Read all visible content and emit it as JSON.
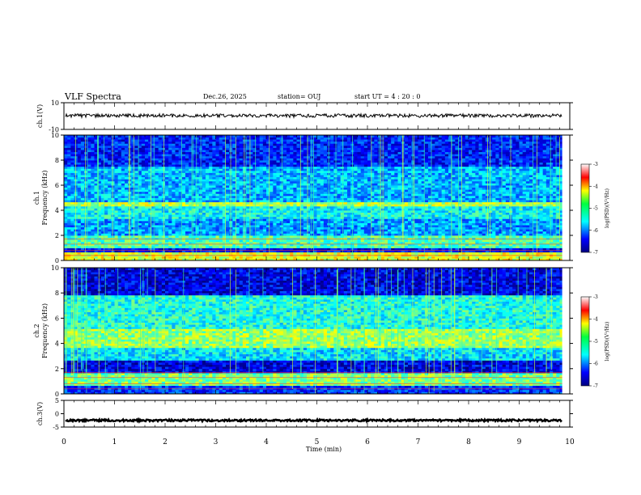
{
  "header": {
    "title": "VLF Spectra",
    "date": "Dec.26, 2025",
    "station": "station= OUJ",
    "start": "start  UT =   4 : 20 : 0"
  },
  "chart_data": [
    {
      "type": "line",
      "name": "ch1-waveform",
      "ylabel": "ch.1(V)",
      "yticks": [
        "10",
        "-10"
      ],
      "ylim": [
        -10,
        10
      ],
      "xlim": [
        0,
        10
      ],
      "description_level": 0.3
    },
    {
      "type": "heatmap",
      "name": "ch1-spectrogram",
      "ylabel": "Frequency (kHz)",
      "ylabel_top": "ch.1",
      "xlim": [
        0,
        10
      ],
      "ylim": [
        0,
        10
      ],
      "yticks": [
        "0",
        "2",
        "4",
        "6",
        "8",
        "10"
      ],
      "colorbar": {
        "label": "log(PSD)(V²/Hz)",
        "ticks": [
          "-3",
          "-4",
          "-5",
          "-6",
          "-7"
        ],
        "range": [
          -7,
          -3
        ]
      },
      "bands": [
        {
          "from": 0.0,
          "to": 0.6,
          "level": -4.6
        },
        {
          "from": 0.6,
          "to": 1.0,
          "level": -6.5
        },
        {
          "from": 1.0,
          "to": 2.0,
          "level": -5.2
        },
        {
          "from": 2.0,
          "to": 3.3,
          "level": -5.9
        },
        {
          "from": 3.3,
          "to": 4.3,
          "level": -5.5
        },
        {
          "from": 4.3,
          "to": 4.7,
          "level": -4.8
        },
        {
          "from": 4.7,
          "to": 7.5,
          "level": -5.8
        },
        {
          "from": 7.5,
          "to": 10.0,
          "level": -6.4
        }
      ]
    },
    {
      "type": "heatmap",
      "name": "ch2-spectrogram",
      "ylabel": "Frequency (kHz)",
      "ylabel_top": "ch.2",
      "xlim": [
        0,
        10
      ],
      "ylim": [
        0,
        10
      ],
      "yticks": [
        "0",
        "2",
        "4",
        "6",
        "8",
        "10"
      ],
      "colorbar": {
        "label": "log(PSD)(V²/Hz)",
        "ticks": [
          "-3",
          "-4",
          "-5",
          "-6",
          "-7"
        ],
        "range": [
          -7,
          -3
        ]
      },
      "bands": [
        {
          "from": 0.0,
          "to": 0.6,
          "level": -6.3
        },
        {
          "from": 0.6,
          "to": 1.6,
          "level": -5.0
        },
        {
          "from": 1.6,
          "to": 2.6,
          "level": -6.6
        },
        {
          "from": 2.6,
          "to": 3.6,
          "level": -5.6
        },
        {
          "from": 3.6,
          "to": 5.2,
          "level": -4.9
        },
        {
          "from": 5.2,
          "to": 7.8,
          "level": -5.4
        },
        {
          "from": 7.8,
          "to": 10.0,
          "level": -6.6
        }
      ]
    },
    {
      "type": "line",
      "name": "ch3-waveform",
      "ylabel": "ch.3(V)",
      "yticks": [
        "5",
        "0",
        "-5"
      ],
      "ylim": [
        -5,
        5
      ],
      "xlim": [
        0,
        10
      ],
      "description_level": -2.5
    }
  ],
  "xaxis": {
    "label": "Time (min)",
    "ticks": [
      "0",
      "1",
      "2",
      "3",
      "4",
      "5",
      "6",
      "7",
      "8",
      "9",
      "10"
    ]
  }
}
